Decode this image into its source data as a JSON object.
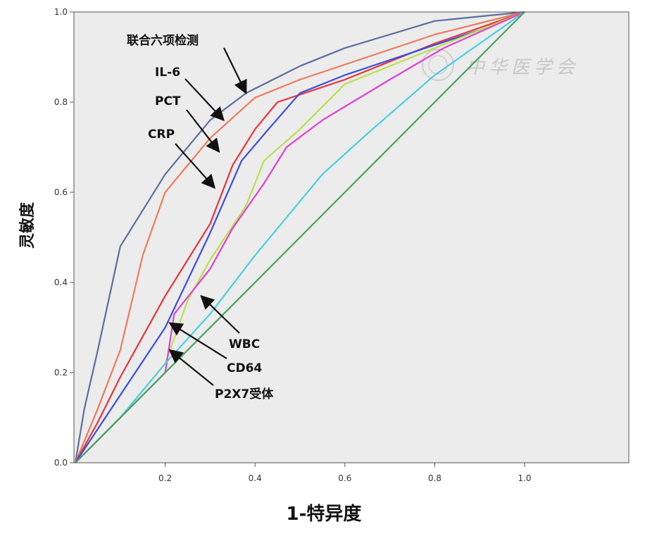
{
  "chart_data": {
    "type": "line",
    "xlabel": "1-特异度",
    "ylabel": "灵敏度",
    "xlim": [
      0,
      1.18
    ],
    "ylim": [
      0,
      1.0
    ],
    "x_ticks": [
      "0.2",
      "0.4",
      "0.6",
      "0.8",
      "1.0"
    ],
    "y_ticks": [
      "0.0",
      "0.2",
      "0.4",
      "0.6",
      "0.8",
      "1.0"
    ],
    "grid": false,
    "legend": "none",
    "colors": {
      "plot_bg": "#ececec",
      "frame": "#555555"
    },
    "series": [
      {
        "name": "联合六项检测",
        "color": "#5b6fa0",
        "points": [
          [
            0,
            0
          ],
          [
            0.02,
            0.12
          ],
          [
            0.05,
            0.25
          ],
          [
            0.1,
            0.48
          ],
          [
            0.2,
            0.64
          ],
          [
            0.3,
            0.76
          ],
          [
            0.38,
            0.82
          ],
          [
            0.5,
            0.88
          ],
          [
            0.6,
            0.92
          ],
          [
            0.8,
            0.98
          ],
          [
            1.0,
            1.0
          ]
        ]
      },
      {
        "name": "IL-6",
        "color": "#f07a5a",
        "points": [
          [
            0,
            0
          ],
          [
            0.05,
            0.12
          ],
          [
            0.1,
            0.25
          ],
          [
            0.15,
            0.46
          ],
          [
            0.2,
            0.6
          ],
          [
            0.3,
            0.72
          ],
          [
            0.4,
            0.81
          ],
          [
            0.5,
            0.85
          ],
          [
            0.65,
            0.9
          ],
          [
            0.8,
            0.95
          ],
          [
            1.0,
            1.0
          ]
        ]
      },
      {
        "name": "PCT",
        "color": "#e8343a",
        "points": [
          [
            0,
            0
          ],
          [
            0.05,
            0.09
          ],
          [
            0.1,
            0.19
          ],
          [
            0.2,
            0.37
          ],
          [
            0.3,
            0.53
          ],
          [
            0.35,
            0.66
          ],
          [
            0.4,
            0.74
          ],
          [
            0.45,
            0.8
          ],
          [
            0.6,
            0.85
          ],
          [
            0.8,
            0.93
          ],
          [
            1.0,
            1.0
          ]
        ]
      },
      {
        "name": "CRP",
        "color": "#3a4ee0",
        "points": [
          [
            0,
            0
          ],
          [
            0.1,
            0.15
          ],
          [
            0.2,
            0.3
          ],
          [
            0.3,
            0.51
          ],
          [
            0.37,
            0.67
          ],
          [
            0.43,
            0.74
          ],
          [
            0.5,
            0.82
          ],
          [
            0.6,
            0.86
          ],
          [
            0.75,
            0.91
          ],
          [
            0.9,
            0.96
          ],
          [
            1.0,
            1.0
          ]
        ]
      },
      {
        "name": "WBC",
        "color": "#b8e04a",
        "points": [
          [
            0,
            0
          ],
          [
            0.1,
            0.1
          ],
          [
            0.2,
            0.22
          ],
          [
            0.25,
            0.36
          ],
          [
            0.3,
            0.45
          ],
          [
            0.38,
            0.57
          ],
          [
            0.42,
            0.67
          ],
          [
            0.5,
            0.74
          ],
          [
            0.6,
            0.84
          ],
          [
            0.75,
            0.9
          ],
          [
            1.0,
            1.0
          ]
        ]
      },
      {
        "name": "CD64",
        "color": "#e040d0",
        "points": [
          [
            0,
            0
          ],
          [
            0.1,
            0.1
          ],
          [
            0.2,
            0.2
          ],
          [
            0.22,
            0.33
          ],
          [
            0.3,
            0.43
          ],
          [
            0.35,
            0.52
          ],
          [
            0.42,
            0.62
          ],
          [
            0.47,
            0.7
          ],
          [
            0.55,
            0.76
          ],
          [
            0.7,
            0.85
          ],
          [
            0.82,
            0.92
          ],
          [
            1.0,
            1.0
          ]
        ]
      },
      {
        "name": "P2X7受体",
        "color": "#48d0e0",
        "points": [
          [
            0,
            0
          ],
          [
            0.1,
            0.1
          ],
          [
            0.2,
            0.22
          ],
          [
            0.3,
            0.33
          ],
          [
            0.4,
            0.46
          ],
          [
            0.55,
            0.64
          ],
          [
            0.65,
            0.73
          ],
          [
            0.8,
            0.86
          ],
          [
            1.0,
            1.0
          ]
        ]
      },
      {
        "name": "参考线",
        "color": "#4aa060",
        "points": [
          [
            0,
            0
          ],
          [
            1.0,
            1.0
          ]
        ]
      }
    ],
    "annotations": [
      {
        "text": "联合六项检测",
        "target": [
          0.38,
          0.82
        ]
      },
      {
        "text": "IL-6",
        "target": [
          0.33,
          0.76
        ]
      },
      {
        "text": "PCT",
        "target": [
          0.32,
          0.69
        ]
      },
      {
        "text": "CRP",
        "target": [
          0.31,
          0.61
        ]
      },
      {
        "text": "WBC",
        "target": [
          0.28,
          0.37
        ]
      },
      {
        "text": "CD64",
        "target": [
          0.21,
          0.31
        ]
      },
      {
        "text": "P2X7受体",
        "target": [
          0.21,
          0.25
        ]
      }
    ],
    "watermark": "中华医学会"
  }
}
